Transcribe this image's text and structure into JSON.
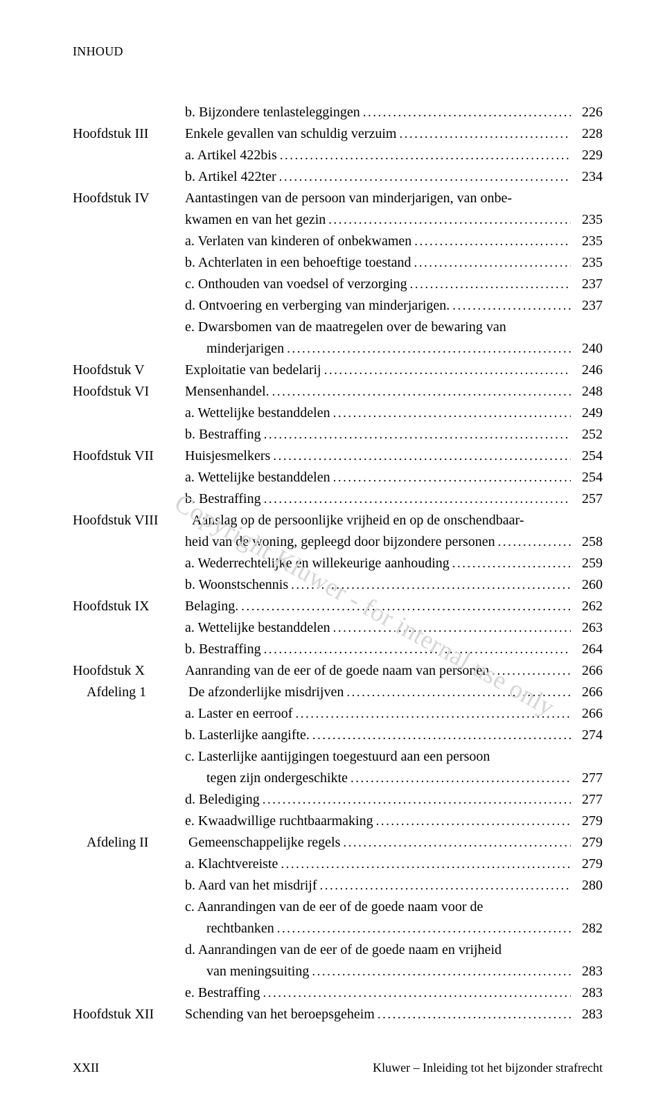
{
  "header": "INHOUD",
  "watermark": "Copyright Kluwer - for internal use only",
  "footer": {
    "left": "XXII",
    "right": "Kluwer – Inleiding tot het bijzonder strafrecht"
  },
  "entries": [
    {
      "label": "",
      "text": "b. Bijzondere tenlasteleggingen",
      "page": "226"
    },
    {
      "label": "Hoofdstuk III",
      "text": "Enkele gevallen van schuldig verzuim",
      "page": "228"
    },
    {
      "label": "",
      "text": "a. Artikel 422bis",
      "page": "229"
    },
    {
      "label": "",
      "text": "b. Artikel 422ter",
      "page": "234"
    },
    {
      "label": "Hoofdstuk IV",
      "text": "Aantastingen van de persoon van minderjarigen, van onbe-",
      "wrap": true
    },
    {
      "cont": true,
      "text": "kwamen en van het gezin",
      "page": "235"
    },
    {
      "label": "",
      "text": "a. Verlaten van kinderen of onbekwamen",
      "page": "235"
    },
    {
      "label": "",
      "text": "b. Achterlaten in een behoeftige toestand",
      "page": "235"
    },
    {
      "label": "",
      "text": "c. Onthouden van voedsel of verzorging",
      "page": "237"
    },
    {
      "label": "",
      "text": "d. Ontvoering en verberging van minderjarigen.",
      "page": "237"
    },
    {
      "label": "",
      "text": "e. Dwarsbomen van de maatregelen over de bewaring van",
      "wrap": true
    },
    {
      "cont": true,
      "indent": true,
      "text": "minderjarigen",
      "page": "240"
    },
    {
      "label": "Hoofdstuk V",
      "text": "Exploitatie van bedelarij",
      "page": "246"
    },
    {
      "label": "Hoofdstuk VI",
      "text": "Mensenhandel.",
      "page": "248"
    },
    {
      "label": "",
      "text": "a. Wettelijke bestanddelen",
      "page": "249"
    },
    {
      "label": "",
      "text": "b. Bestraffing",
      "page": "252"
    },
    {
      "label": "Hoofdstuk VII",
      "text": "Huisjesmelkers",
      "page": "254"
    },
    {
      "label": "",
      "text": "a. Wettelijke bestanddelen",
      "page": "254"
    },
    {
      "label": "",
      "text": "b. Bestraffing",
      "page": "257"
    },
    {
      "label": "Hoofdstuk VIII",
      "text": "Aanslag op de persoonlijke vrijheid en op de onschendbaar-",
      "wrap": true,
      "wide": true
    },
    {
      "cont": true,
      "text": "heid van de woning, gepleegd door bijzondere personen",
      "page": "258"
    },
    {
      "label": "",
      "text": "a. Wederrechtelijke en willekeurige aanhouding",
      "page": "259"
    },
    {
      "label": "",
      "text": "b. Woonstschennis",
      "page": "260"
    },
    {
      "label": "Hoofdstuk IX",
      "text": "Belaging.",
      "page": "262"
    },
    {
      "label": "",
      "text": "a. Wettelijke bestanddelen",
      "page": "263"
    },
    {
      "label": "",
      "text": "b. Bestraffing",
      "page": "264"
    },
    {
      "label": "Hoofdstuk X",
      "text": "Aanranding van de eer of de goede naam van personen",
      "page": "266"
    },
    {
      "label": "Afdeling 1",
      "labelIndent": true,
      "text": "De afzonderlijke misdrijven",
      "page": "266"
    },
    {
      "label": "",
      "text": "a. Laster en eerroof",
      "page": "266"
    },
    {
      "label": "",
      "text": "b. Lasterlijke aangifte.",
      "page": "274"
    },
    {
      "label": "",
      "text": "c. Lasterlijke aantijgingen toegestuurd aan een persoon",
      "wrap": true
    },
    {
      "cont": true,
      "indent": true,
      "text": "tegen zijn ondergeschikte",
      "page": "277"
    },
    {
      "label": "",
      "text": "d. Belediging",
      "page": "277"
    },
    {
      "label": "",
      "text": "e. Kwaadwillige ruchtbaarmaking",
      "page": "279"
    },
    {
      "label": "Afdeling II",
      "labelIndent": true,
      "text": "Gemeenschappelijke regels",
      "page": "279"
    },
    {
      "label": "",
      "text": "a. Klachtvereiste",
      "page": "279"
    },
    {
      "label": "",
      "text": "b.  Aard van het misdrijf",
      "page": "280"
    },
    {
      "label": "",
      "text": "c. Aanrandingen van de eer of de goede naam voor de",
      "wrap": true
    },
    {
      "cont": true,
      "indent": true,
      "text": "rechtbanken",
      "page": "282"
    },
    {
      "label": "",
      "text": "d. Aanrandingen van de eer of de goede naam en vrijheid",
      "wrap": true
    },
    {
      "cont": true,
      "indent": true,
      "text": "van meningsuiting",
      "page": "283"
    },
    {
      "label": "",
      "text": "e. Bestraffing",
      "page": "283"
    },
    {
      "label": "Hoofdstuk XII",
      "text": "Schending van het beroepsgeheim",
      "page": "283"
    }
  ]
}
